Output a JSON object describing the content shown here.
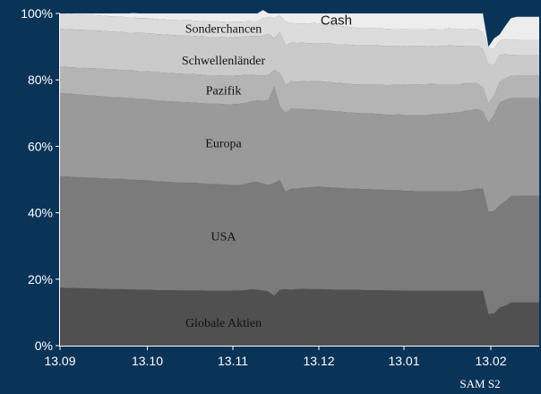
{
  "chart_data": {
    "type": "area",
    "stacked": true,
    "x_ticks": [
      "13.09",
      "13.10",
      "13.11",
      "13.12",
      "13.01",
      "13.02"
    ],
    "y_ticks": [
      "0%",
      "20%",
      "40%",
      "60%",
      "80%",
      "100%"
    ],
    "ylim": [
      0,
      100
    ],
    "grid": false,
    "legend": "inline labels",
    "source": "SAM S2",
    "x": [
      0,
      1,
      2,
      3,
      4,
      5,
      6,
      7,
      8,
      9,
      10,
      11,
      12,
      13,
      14,
      15,
      16,
      17,
      18,
      19,
      20,
      21,
      22,
      23,
      24,
      25,
      26,
      27,
      28,
      29,
      30,
      31,
      32,
      33,
      34,
      35,
      36,
      37,
      38,
      39,
      40,
      41,
      42,
      43,
      44,
      45,
      46,
      47,
      48,
      49,
      50,
      51,
      52,
      53,
      54,
      55,
      56,
      57,
      58,
      59,
      60,
      61,
      62,
      63,
      64,
      65,
      66,
      67,
      68,
      69,
      70,
      71,
      72,
      73,
      74,
      75,
      76,
      77,
      78,
      79,
      80,
      81,
      82,
      83,
      84,
      85
    ],
    "series": [
      {
        "name": "Globale Aktien",
        "label_x": 29,
        "label_y": 7,
        "color": "#505050",
        "values": [
          17.5,
          17.4,
          17.4,
          17.3,
          17.3,
          17.2,
          17.2,
          17.1,
          17.1,
          17.0,
          17.0,
          17.0,
          16.9,
          16.9,
          16.8,
          16.8,
          16.8,
          16.7,
          16.7,
          16.7,
          16.7,
          16.6,
          16.6,
          16.6,
          16.6,
          16.6,
          16.5,
          16.5,
          16.5,
          16.5,
          16.5,
          16.6,
          16.6,
          16.7,
          17.0,
          16.8,
          16.6,
          16.3,
          15.0,
          16.8,
          17.0,
          16.8,
          17.0,
          17.1,
          17.0,
          17.0,
          17.0,
          16.9,
          16.9,
          16.8,
          16.8,
          16.8,
          16.8,
          16.8,
          16.7,
          16.7,
          16.7,
          16.7,
          16.6,
          16.6,
          16.6,
          16.5,
          16.5,
          16.5,
          16.5,
          16.5,
          16.5,
          16.5,
          16.5,
          16.5,
          16.5,
          16.5,
          16.5,
          16.5,
          16.5,
          16.5,
          9.5,
          9.7,
          11.5,
          12.0,
          13.0,
          13.0,
          13.0,
          13.0,
          13.0,
          13.0
        ]
      },
      {
        "name": "USA",
        "label_x": 29,
        "label_y": 33,
        "color": "#7b7b7b",
        "values": [
          33.5,
          33.5,
          33.4,
          33.4,
          33.4,
          33.3,
          33.3,
          33.3,
          33.3,
          33.2,
          33.2,
          33.2,
          33.1,
          33.1,
          33.0,
          33.0,
          32.9,
          32.8,
          32.7,
          32.6,
          32.5,
          32.5,
          32.5,
          32.4,
          32.4,
          32.3,
          32.2,
          32.1,
          32.1,
          32.0,
          31.9,
          31.8,
          31.8,
          32.0,
          32.2,
          32.5,
          32.2,
          32.0,
          34.0,
          33.0,
          29.3,
          30.5,
          30.2,
          30.4,
          30.6,
          30.8,
          30.9,
          30.8,
          30.7,
          30.7,
          30.6,
          30.5,
          30.5,
          30.4,
          30.4,
          30.4,
          30.3,
          30.3,
          30.2,
          30.2,
          30.2,
          30.1,
          30.1,
          30.0,
          30.0,
          30.0,
          30.0,
          30.0,
          30.0,
          30.0,
          30.0,
          30.0,
          30.2,
          30.4,
          30.8,
          30.8,
          30.8,
          30.8,
          30.8,
          31.5,
          32.0,
          32.1,
          32.1,
          32.1,
          32.1,
          32.1
        ]
      },
      {
        "name": "Europa",
        "label_x": 29,
        "label_y": 61,
        "color": "#9a9a9a",
        "values": [
          25.0,
          25.0,
          25.0,
          24.9,
          24.8,
          24.8,
          24.8,
          24.7,
          24.6,
          24.6,
          24.6,
          24.5,
          24.5,
          24.5,
          24.4,
          24.4,
          24.4,
          24.3,
          24.3,
          24.3,
          24.3,
          24.3,
          24.2,
          24.2,
          24.1,
          24.1,
          24.1,
          24.2,
          24.2,
          24.2,
          24.2,
          24.3,
          24.4,
          24.4,
          24.4,
          24.5,
          24.9,
          25.7,
          29.0,
          22.2,
          23.7,
          24.1,
          24.0,
          23.8,
          23.5,
          23.3,
          23.1,
          23.1,
          23.1,
          23.0,
          23.0,
          22.9,
          22.8,
          22.8,
          22.8,
          22.8,
          22.8,
          22.7,
          22.7,
          22.7,
          22.8,
          22.8,
          22.8,
          22.8,
          22.9,
          22.9,
          23.1,
          23.2,
          23.3,
          23.5,
          23.6,
          23.8,
          24.0,
          24.0,
          24.0,
          23.2,
          26.7,
          29.0,
          30.8,
          30.5,
          29.5,
          29.4,
          29.4,
          29.4,
          29.4,
          29.4
        ]
      },
      {
        "name": "Pazifik",
        "label_x": 29,
        "label_y": 77,
        "color": "#b4b4b4",
        "values": [
          8.0,
          8.0,
          8.0,
          8.1,
          8.2,
          8.2,
          8.2,
          8.3,
          8.3,
          8.3,
          8.3,
          8.3,
          8.3,
          8.3,
          8.4,
          8.4,
          8.4,
          8.5,
          8.5,
          8.5,
          8.5,
          8.5,
          8.5,
          8.6,
          8.6,
          8.6,
          8.6,
          8.6,
          8.6,
          8.6,
          8.6,
          8.6,
          8.6,
          8.4,
          8.0,
          7.6,
          7.6,
          7.5,
          5.0,
          10.0,
          8.5,
          8.2,
          8.2,
          8.3,
          8.4,
          8.5,
          8.6,
          8.6,
          8.6,
          8.6,
          8.6,
          8.6,
          8.6,
          8.6,
          8.7,
          8.7,
          8.8,
          8.8,
          8.9,
          9.0,
          9.0,
          9.1,
          9.2,
          9.3,
          9.3,
          9.3,
          9.2,
          9.0,
          8.9,
          8.7,
          8.6,
          8.4,
          8.3,
          8.1,
          7.7,
          7.2,
          6.0,
          5.8,
          6.3,
          6.5,
          6.7,
          6.8,
          6.8,
          6.8,
          6.8,
          6.8
        ]
      },
      {
        "name": "Schwellenländer",
        "label_x": 29,
        "label_y": 86,
        "color": "#cacaca",
        "values": [
          11.4,
          11.4,
          11.4,
          11.4,
          11.4,
          11.4,
          11.4,
          11.4,
          11.4,
          11.4,
          11.4,
          11.4,
          11.4,
          11.4,
          11.5,
          11.5,
          11.5,
          11.5,
          11.5,
          11.5,
          11.5,
          11.5,
          11.5,
          11.5,
          11.5,
          11.5,
          11.6,
          11.6,
          11.6,
          11.6,
          11.6,
          11.6,
          11.6,
          11.6,
          11.6,
          11.8,
          12.0,
          12.4,
          9.5,
          12.4,
          11.8,
          11.6,
          11.7,
          11.6,
          11.5,
          11.5,
          11.5,
          11.5,
          11.6,
          11.6,
          11.7,
          11.8,
          11.8,
          11.8,
          11.8,
          11.8,
          11.8,
          11.8,
          11.8,
          11.7,
          11.6,
          11.6,
          11.6,
          11.6,
          11.5,
          11.5,
          11.3,
          11.5,
          11.5,
          11.7,
          11.6,
          11.5,
          11.3,
          11.3,
          11.3,
          11.6,
          11.7,
          9.3,
          8.1,
          7.2,
          6.3,
          6.3,
          6.3,
          6.3,
          6.3,
          6.3
        ]
      },
      {
        "name": "Sonderchancen",
        "label_x": 29,
        "label_y": 95.5,
        "color": "#dcdcdc",
        "values": [
          4.6,
          4.6,
          4.6,
          4.6,
          4.6,
          4.6,
          4.6,
          4.6,
          4.6,
          4.6,
          4.6,
          4.6,
          4.6,
          4.6,
          4.5,
          4.5,
          4.5,
          4.5,
          4.5,
          4.5,
          4.5,
          4.6,
          4.6,
          4.6,
          4.6,
          4.6,
          4.6,
          4.6,
          4.6,
          4.6,
          4.6,
          4.6,
          4.5,
          4.5,
          4.5,
          4.5,
          5.2,
          5.0,
          6.0,
          5.0,
          7.2,
          5.9,
          5.9,
          5.8,
          5.9,
          6.0,
          5.9,
          5.8,
          5.7,
          5.6,
          5.5,
          5.4,
          5.3,
          5.2,
          5.2,
          5.2,
          5.2,
          5.2,
          5.2,
          5.1,
          5.1,
          5.1,
          5.1,
          5.1,
          5.1,
          5.1,
          5.1,
          5.1,
          5.1,
          5.1,
          5.1,
          5.0,
          5.0,
          4.9,
          4.9,
          5.0,
          5.0,
          4.6,
          4.4,
          4.6,
          4.5,
          4.6,
          4.6,
          4.6,
          4.6,
          4.6
        ]
      },
      {
        "name": "Cash",
        "label_x": 49,
        "label_y": 98,
        "color": "#ededed",
        "values": [
          0.0,
          0.1,
          0.2,
          0.3,
          0.3,
          0.5,
          0.5,
          0.6,
          0.7,
          0.9,
          0.9,
          1.0,
          1.2,
          1.3,
          1.4,
          1.4,
          1.5,
          1.7,
          1.8,
          1.9,
          2.0,
          2.0,
          2.1,
          2.1,
          2.2,
          2.3,
          2.4,
          2.4,
          2.4,
          2.5,
          2.6,
          2.5,
          2.5,
          2.4,
          2.3,
          2.3,
          2.5,
          1.1,
          1.5,
          0.6,
          2.5,
          2.9,
          3.0,
          3.0,
          3.1,
          2.9,
          3.0,
          3.3,
          3.4,
          3.7,
          3.8,
          4.0,
          4.2,
          4.4,
          4.4,
          4.4,
          4.4,
          4.5,
          4.6,
          4.7,
          4.7,
          4.8,
          4.7,
          4.7,
          4.7,
          4.7,
          4.8,
          4.7,
          4.7,
          4.5,
          4.6,
          4.8,
          4.7,
          4.8,
          4.8,
          5.7,
          0.3,
          3.3,
          1.8,
          4.0,
          6.6,
          6.8,
          6.8,
          6.8,
          6.8,
          6.8
        ]
      }
    ]
  }
}
